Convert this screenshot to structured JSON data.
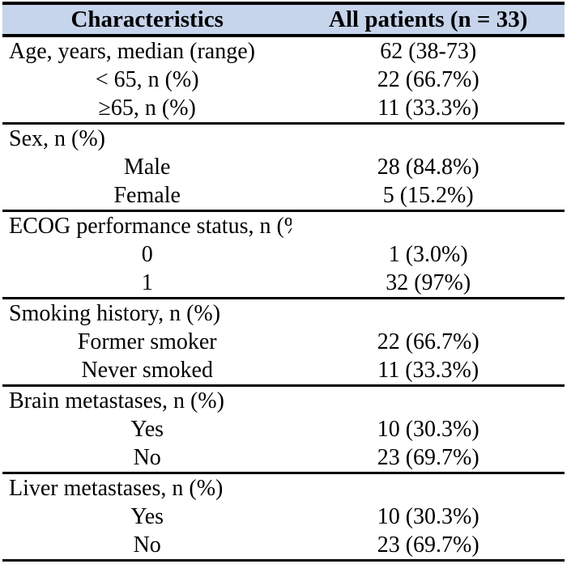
{
  "table": {
    "header": {
      "characteristics": "Characteristics",
      "all_patients": "All patients (n = 33)"
    },
    "rows": [
      {
        "label": "Age, years, median (range)",
        "value": "62 (38-73)"
      },
      {
        "label": "< 65, n (%)",
        "value": "22 (66.7%)"
      },
      {
        "label": "≥65, n (%)",
        "value": "11 (33.3%)"
      },
      {
        "label": "Sex, n (%)",
        "value": ""
      },
      {
        "label": "Male",
        "value": "28 (84.8%)"
      },
      {
        "label": "Female",
        "value": "5 (15.2%)"
      },
      {
        "label": "ECOG performance status, n (%)",
        "value": ""
      },
      {
        "label": "0",
        "value": "1 (3.0%)"
      },
      {
        "label": "1",
        "value": "32 (97%)"
      },
      {
        "label": "Smoking history, n (%)",
        "value": ""
      },
      {
        "label": "Former smoker",
        "value": "22 (66.7%)"
      },
      {
        "label": "Never smoked",
        "value": "11 (33.3%)"
      },
      {
        "label": "Brain metastases, n (%)",
        "value": ""
      },
      {
        "label": "Yes",
        "value": "10 (30.3%)"
      },
      {
        "label": "No",
        "value": "23 (69.7%)"
      },
      {
        "label": "Liver metastases, n (%)",
        "value": ""
      },
      {
        "label": "Yes",
        "value": "10 (30.3%)"
      },
      {
        "label": "No",
        "value": "23 (69.7%)"
      }
    ]
  },
  "colors": {
    "header_background": "#c6d4ec",
    "border": "#000000",
    "text": "#000000"
  }
}
